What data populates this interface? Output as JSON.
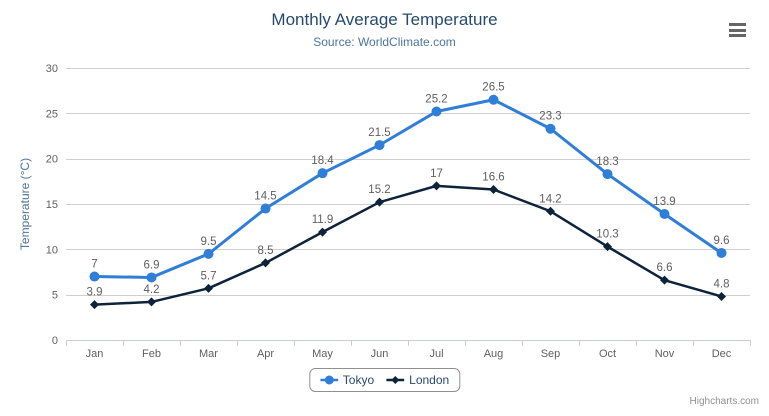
{
  "credits": "Highcharts.com",
  "colors": {
    "title": "#274b6d",
    "subtitle": "#4d759e",
    "axis_title": "#4d759e",
    "axis_labels": "#606060",
    "grid_line": "#d0d0d0",
    "axis_line": "#c0d0e0",
    "tick": "#c0d0e0",
    "data_label": "#606060",
    "legend_text": "#274b6d",
    "credits_text": "#909090",
    "menu_icon": "#666666"
  },
  "chart_data": {
    "type": "line",
    "title": "Monthly Average Temperature",
    "subtitle": "Source: WorldClimate.com",
    "xlabel": "",
    "ylabel": "Temperature (°C)",
    "ylim": [
      0,
      30
    ],
    "yticks": [
      0,
      5,
      10,
      15,
      20,
      25,
      30
    ],
    "grid": true,
    "legend_position": "bottom",
    "categories": [
      "Jan",
      "Feb",
      "Mar",
      "Apr",
      "May",
      "Jun",
      "Jul",
      "Aug",
      "Sep",
      "Oct",
      "Nov",
      "Dec"
    ],
    "series": [
      {
        "name": "Tokyo",
        "color": "#2f7ed8",
        "marker": "circle",
        "values": [
          7,
          6.9,
          9.5,
          14.5,
          18.4,
          21.5,
          25.2,
          26.5,
          23.3,
          18.3,
          13.9,
          9.6
        ]
      },
      {
        "name": "London",
        "color": "#0d233a",
        "marker": "diamond",
        "values": [
          3.9,
          4.2,
          5.7,
          8.5,
          11.9,
          15.2,
          17,
          16.6,
          14.2,
          10.3,
          6.6,
          4.8
        ]
      }
    ]
  }
}
